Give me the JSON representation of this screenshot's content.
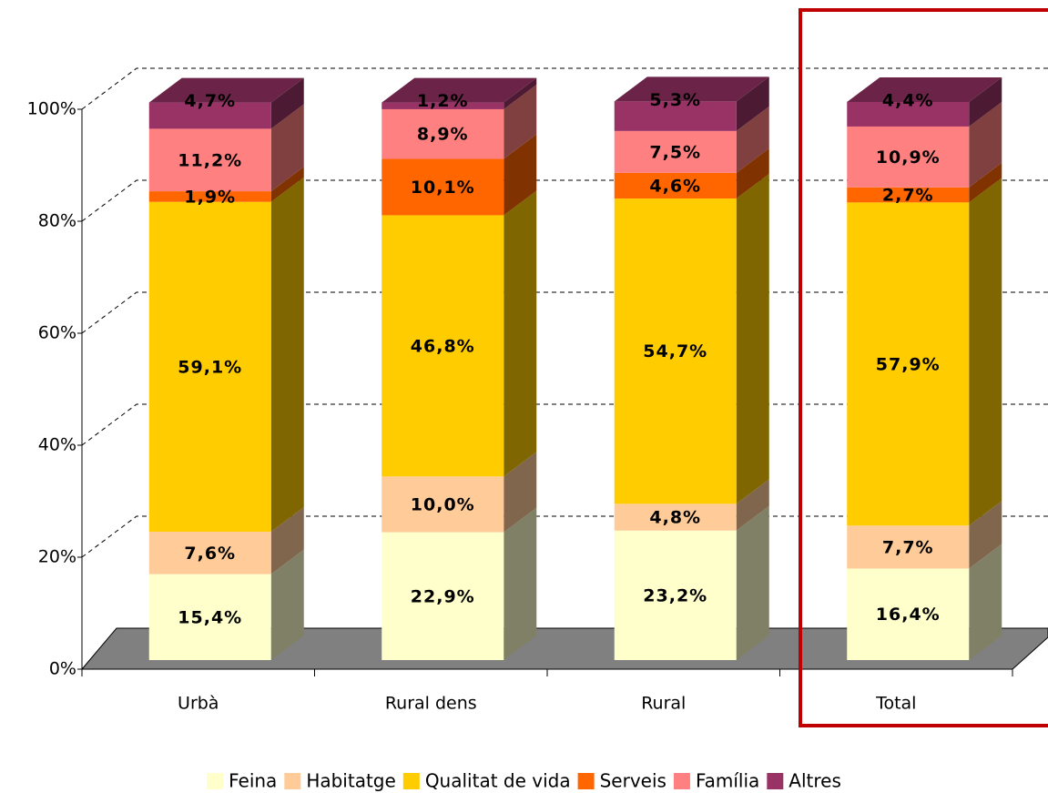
{
  "chart_data": {
    "type": "bar3d_stacked",
    "categories": [
      "Urbà",
      "Rural dens",
      "Rural",
      "Total"
    ],
    "series": [
      {
        "name": "Feina",
        "color": "#FFFFCC",
        "values": [
          15.4,
          22.9,
          23.2,
          16.4
        ],
        "value_labels": [
          "15,4%",
          "22,9%",
          "23,2%",
          "16,4%"
        ]
      },
      {
        "name": "Habitatge",
        "color": "#FFCC99",
        "values": [
          7.6,
          10.0,
          4.8,
          7.7
        ],
        "value_labels": [
          "7,6%",
          "10,0%",
          "4,8%",
          "7,7%"
        ]
      },
      {
        "name": "Qualitat de vida",
        "color": "#FFCC00",
        "values": [
          59.1,
          46.8,
          54.7,
          57.9
        ],
        "value_labels": [
          "59,1%",
          "46,8%",
          "54,7%",
          "57,9%"
        ]
      },
      {
        "name": "Serveis",
        "color": "#FF6600",
        "values": [
          1.9,
          10.1,
          4.6,
          2.7
        ],
        "value_labels": [
          "1,9%",
          "10,1%",
          "4,6%",
          "2,7%"
        ]
      },
      {
        "name": "Família",
        "color": "#FF8080",
        "values": [
          11.2,
          8.9,
          7.5,
          10.9
        ],
        "value_labels": [
          "11,2%",
          "8,9%",
          "7,5%",
          "10,9%"
        ]
      },
      {
        "name": "Altres",
        "color": "#993366",
        "values": [
          4.7,
          1.2,
          5.3,
          4.4
        ],
        "value_labels": [
          "4,7%",
          "1,2%",
          "5,3%",
          "4,4%"
        ]
      }
    ],
    "ylim": [
      0,
      100
    ],
    "yticks": [
      {
        "value": 0,
        "label": "0%"
      },
      {
        "value": 20,
        "label": "20%"
      },
      {
        "value": 40,
        "label": "40%"
      },
      {
        "value": 60,
        "label": "60%"
      },
      {
        "value": 80,
        "label": "80%"
      },
      {
        "value": 100,
        "label": "100%"
      }
    ],
    "grid": true,
    "stacked": true,
    "legend": "bottom"
  }
}
